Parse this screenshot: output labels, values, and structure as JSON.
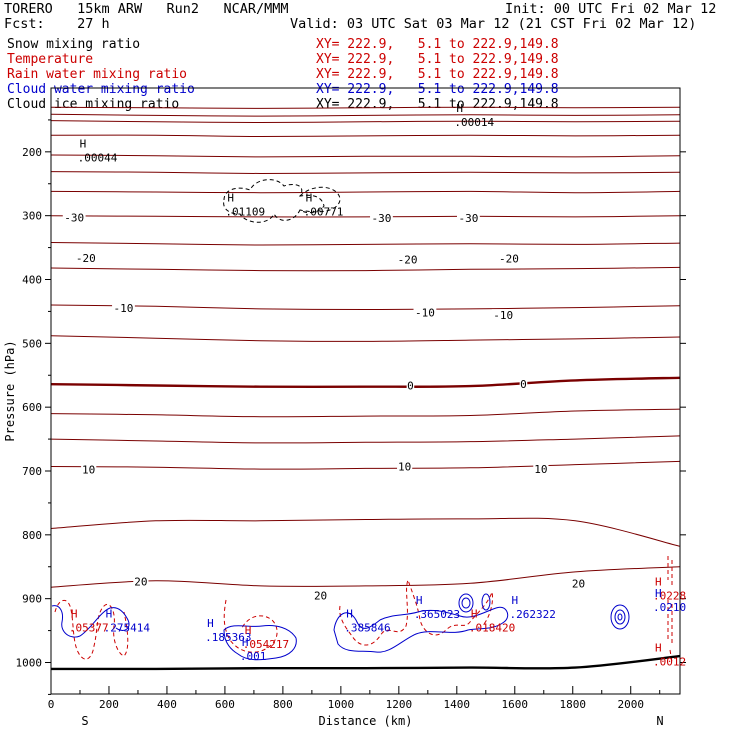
{
  "header": {
    "model": "TORERO   15km ARW   Run2   NCAR/MMM",
    "init": "Init: 00 UTC Fri 02 Mar 12",
    "fcst": "Fcst:    27 h",
    "valid": "Valid: 03 UTC Sat 03 Mar 12 (21 CST Fri 02 Mar 12)"
  },
  "legend": [
    {
      "label": "Snow mixing ratio",
      "xy": "XY= 222.9,   5.1 to 222.9,149.8",
      "color": "#000000"
    },
    {
      "label": "Temperature",
      "xy": "XY= 222.9,   5.1 to 222.9,149.8",
      "color": "#cc0000"
    },
    {
      "label": "Rain water mixing ratio",
      "xy": "XY= 222.9,   5.1 to 222.9,149.8",
      "color": "#cc0000"
    },
    {
      "label": "Cloud water mixing ratio",
      "xy": "XY= 222.9,   5.1 to 222.9,149.8",
      "color": "#0000cc"
    },
    {
      "label": "Cloud ice mixing ratio",
      "xy": "XY= 222.9,   5.1 to 222.9,149.8",
      "color": "#000000"
    }
  ],
  "chart_data": {
    "type": "line",
    "title": "Vertical cross-section",
    "xlabel": "Distance (km)",
    "ylabel": "Pressure (hPa)",
    "xlim": [
      0,
      2170
    ],
    "ylim": [
      100,
      1050
    ],
    "x_ticks": [
      0,
      200,
      400,
      600,
      800,
      1000,
      1200,
      1400,
      1600,
      1800,
      2000
    ],
    "y_ticks": [
      200,
      300,
      400,
      500,
      600,
      700,
      800,
      900,
      1000
    ],
    "end_labels": {
      "left": "S",
      "right": "N"
    },
    "temperature_isotherms": [
      {
        "temp": -50,
        "p": [
          130,
          131,
          132,
          131,
          130,
          131,
          130
        ]
      },
      {
        "temp": -50,
        "p": [
          141,
          143,
          144,
          143,
          142,
          143,
          142
        ]
      },
      {
        "temp": -50,
        "p": [
          151,
          153,
          154,
          153,
          152,
          153,
          152
        ]
      },
      {
        "temp": -40,
        "p": [
          174,
          174,
          176,
          175,
          174,
          175,
          174
        ]
      },
      {
        "temp": -40,
        "p": [
          205,
          206,
          208,
          207,
          207,
          208,
          206
        ]
      },
      {
        "temp": -40,
        "p": [
          231,
          232,
          234,
          233,
          232,
          233,
          232
        ]
      },
      {
        "temp": -30,
        "p": [
          262,
          263,
          264,
          263,
          262,
          264,
          262
        ]
      },
      {
        "temp": -30,
        "p": [
          300,
          301,
          302,
          302,
          301,
          302,
          300
        ]
      },
      {
        "temp": -20,
        "p": [
          342,
          344,
          346,
          345,
          344,
          345,
          343
        ]
      },
      {
        "temp": -20,
        "p": [
          382,
          384,
          386,
          386,
          384,
          383,
          381
        ]
      },
      {
        "temp": -10,
        "p": [
          440,
          442,
          446,
          447,
          446,
          444,
          441
        ]
      },
      {
        "temp": -10,
        "p": [
          488,
          492,
          496,
          497,
          495,
          493,
          490
        ]
      },
      {
        "temp": 0,
        "p": [
          564,
          566,
          568,
          568,
          567,
          558,
          554
        ]
      },
      {
        "temp": 10,
        "p": [
          610,
          612,
          615,
          614,
          613,
          606,
          603
        ]
      },
      {
        "temp": 10,
        "p": [
          650,
          653,
          656,
          655,
          654,
          650,
          645
        ]
      },
      {
        "temp": 10,
        "p": [
          693,
          694,
          697,
          696,
          695,
          690,
          685
        ]
      },
      {
        "temp": 20,
        "p": [
          790,
          778,
          778,
          776,
          775,
          778,
          818
        ]
      },
      {
        "temp": 20,
        "p": [
          882,
          872,
          880,
          880,
          876,
          858,
          850
        ]
      }
    ],
    "isotherm_labels": [
      {
        "text": "-30",
        "x": 80,
        "p": 303
      },
      {
        "text": "-30",
        "x": 1140,
        "p": 304
      },
      {
        "text": "-30",
        "x": 1440,
        "p": 304
      },
      {
        "text": "-20",
        "x": 120,
        "p": 366
      },
      {
        "text": "-20",
        "x": 1230,
        "p": 369
      },
      {
        "text": "-20",
        "x": 1580,
        "p": 367
      },
      {
        "text": "-10",
        "x": 250,
        "p": 445
      },
      {
        "text": "-10",
        "x": 1290,
        "p": 452
      },
      {
        "text": "-10",
        "x": 1560,
        "p": 456
      },
      {
        "text": "0",
        "x": 1240,
        "p": 566
      },
      {
        "text": "0",
        "x": 1630,
        "p": 564
      },
      {
        "text": "10",
        "x": 130,
        "p": 698
      },
      {
        "text": "10",
        "x": 1220,
        "p": 693
      },
      {
        "text": "10",
        "x": 1690,
        "p": 697
      },
      {
        "text": "20",
        "x": 310,
        "p": 873
      },
      {
        "text": "20",
        "x": 930,
        "p": 895
      },
      {
        "text": "20",
        "x": 1820,
        "p": 876
      }
    ],
    "maxima_labels": [
      {
        "text": ".00014",
        "x": 1440,
        "p": 150,
        "color": "#000000"
      },
      {
        "text": ".00044",
        "x": 140,
        "p": 206,
        "color": "#000000"
      },
      {
        "text": ".01109",
        "x": 650,
        "p": 290,
        "color": "#000000"
      },
      {
        "text": ".00771",
        "x": 920,
        "p": 290,
        "color": "#000000"
      },
      {
        "text": ".05377",
        "x": 110,
        "p": 942,
        "color": "#cc0000"
      },
      {
        "text": ".275414",
        "x": 230,
        "p": 942,
        "color": "#0000cc"
      },
      {
        "text": ".185363",
        "x": 580,
        "p": 957,
        "color": "#0000cc"
      },
      {
        "text": ".054217",
        "x": 710,
        "p": 968,
        "color": "#cc0000"
      },
      {
        "text": ".001",
        "x": 700,
        "p": 987,
        "color": "#0000cc"
      },
      {
        "text": ".385846",
        "x": 1060,
        "p": 942,
        "color": "#0000cc"
      },
      {
        "text": ".365023",
        "x": 1300,
        "p": 921,
        "color": "#0000cc"
      },
      {
        "text": ".018420",
        "x": 1490,
        "p": 942,
        "color": "#cc0000"
      },
      {
        "text": ".262322",
        "x": 1630,
        "p": 921,
        "color": "#0000cc"
      },
      {
        "text": ".0228",
        "x": 2125,
        "p": 892,
        "color": "#cc0000"
      },
      {
        "text": ".0210",
        "x": 2125,
        "p": 910,
        "color": "#0000cc"
      },
      {
        "text": ".0012",
        "x": 2125,
        "p": 995,
        "color": "#cc0000"
      }
    ],
    "surface_pressure": [
      1010,
      1010,
      1009,
      1009,
      1008,
      1008,
      990
    ]
  }
}
